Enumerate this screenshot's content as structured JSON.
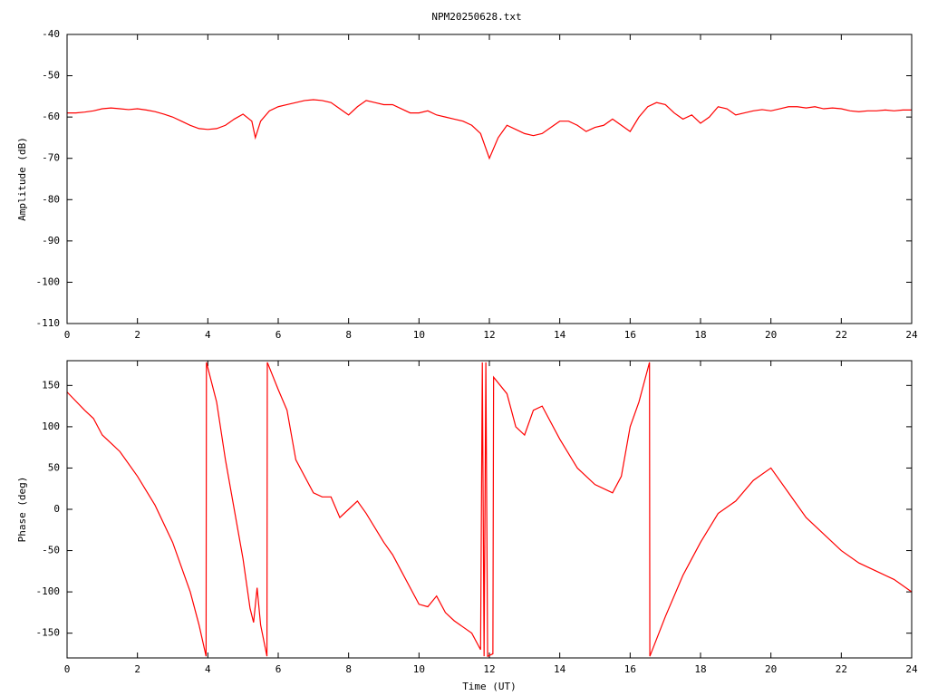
{
  "chart_data": [
    {
      "type": "line",
      "title": "NPM20250628.txt",
      "ylabel": "Amplitude (dB)",
      "xlim": [
        0,
        24
      ],
      "xticks": [
        0,
        2,
        4,
        6,
        8,
        10,
        12,
        14,
        16,
        18,
        20,
        22,
        24
      ],
      "ylim": [
        -110,
        -40
      ],
      "yticks": [
        -110,
        -100,
        -90,
        -80,
        -70,
        -60,
        -50,
        -40
      ],
      "series": [
        {
          "color": "#ff0000",
          "x": [
            0,
            0.25,
            0.5,
            0.75,
            1,
            1.25,
            1.5,
            1.75,
            2,
            2.25,
            2.5,
            2.75,
            3,
            3.25,
            3.5,
            3.75,
            4,
            4.25,
            4.5,
            4.75,
            5,
            5.25,
            5.35,
            5.5,
            5.75,
            6,
            6.25,
            6.5,
            6.75,
            7,
            7.25,
            7.5,
            7.75,
            8,
            8.25,
            8.5,
            8.75,
            9,
            9.25,
            9.5,
            9.75,
            10,
            10.25,
            10.5,
            10.75,
            11,
            11.25,
            11.5,
            11.75,
            12,
            12.25,
            12.5,
            12.75,
            13,
            13.25,
            13.5,
            13.75,
            14,
            14.25,
            14.5,
            14.75,
            15,
            15.25,
            15.5,
            15.75,
            16,
            16.25,
            16.5,
            16.75,
            17,
            17.25,
            17.5,
            17.75,
            18,
            18.25,
            18.5,
            18.75,
            19,
            19.25,
            19.5,
            19.75,
            20,
            20.25,
            20.5,
            20.75,
            21,
            21.25,
            21.5,
            21.75,
            22,
            22.25,
            22.5,
            22.75,
            23,
            23.25,
            23.5,
            23.75,
            24
          ],
          "values": [
            -59,
            -59,
            -58.8,
            -58.5,
            -58,
            -57.8,
            -58,
            -58.2,
            -58,
            -58.3,
            -58.7,
            -59.3,
            -60,
            -61,
            -62,
            -62.8,
            -63,
            -62.8,
            -62,
            -60.5,
            -59.3,
            -61,
            -65,
            -61,
            -58.5,
            -57.5,
            -57,
            -56.5,
            -56,
            -55.8,
            -56,
            -56.5,
            -58,
            -59.5,
            -57.5,
            -56,
            -56.5,
            -57,
            -57,
            -58,
            -59,
            -59,
            -58.5,
            -59.5,
            -60,
            -60.5,
            -61,
            -62,
            -64,
            -70,
            -65,
            -62,
            -63,
            -64,
            -64.5,
            -64,
            -62.5,
            -61,
            -61,
            -62,
            -63.5,
            -62.5,
            -62,
            -60.5,
            -62,
            -63.5,
            -60,
            -57.5,
            -56.5,
            -57,
            -59,
            -60.5,
            -59.5,
            -61.5,
            -60,
            -57.5,
            -58,
            -59.5,
            -59,
            -58.5,
            -58.2,
            -58.5,
            -58,
            -57.5,
            -57.5,
            -57.8,
            -57.5,
            -58,
            -57.8,
            -58,
            -58.5,
            -58.7,
            -58.5,
            -58.5,
            -58.3,
            -58.5,
            -58.3,
            -58.3
          ]
        }
      ]
    },
    {
      "type": "line",
      "ylabel": "Phase (deg)",
      "xlabel": "Time (UT)",
      "xlim": [
        0,
        24
      ],
      "xticks": [
        0,
        2,
        4,
        6,
        8,
        10,
        12,
        14,
        16,
        18,
        20,
        22,
        24
      ],
      "ylim": [
        -180,
        180
      ],
      "yticks": [
        -150,
        -100,
        -50,
        0,
        50,
        100,
        150
      ],
      "series": [
        {
          "color": "#ff0000",
          "x": [
            0,
            0.5,
            0.75,
            1,
            1.5,
            2,
            2.5,
            3,
            3.5,
            3.75,
            3.95,
            3.96,
            4.25,
            4.5,
            4.75,
            5,
            5.2,
            5.3,
            5.4,
            5.5,
            5.68,
            5.69,
            6,
            6.25,
            6.5,
            7,
            7.25,
            7.5,
            7.75,
            8,
            8.25,
            8.5,
            9,
            9.25,
            9.5,
            10,
            10.25,
            10.5,
            10.75,
            11,
            11.5,
            11.75,
            11.8,
            11.85,
            11.9,
            11.95,
            12.1,
            12.12,
            12.5,
            12.75,
            13,
            13.25,
            13.5,
            14,
            14.5,
            15,
            15.5,
            15.75,
            16,
            16.25,
            16.5,
            16.55,
            16.56,
            17,
            17.5,
            18,
            18.5,
            19,
            19.5,
            20,
            20.5,
            21,
            21.5,
            22,
            22.5,
            23,
            23.5,
            24
          ],
          "values": [
            142,
            120,
            110,
            90,
            70,
            40,
            5,
            -40,
            -100,
            -140,
            -178,
            178,
            130,
            60,
            0,
            -60,
            -120,
            -137,
            -95,
            -140,
            -178,
            178,
            145,
            120,
            60,
            20,
            15,
            15,
            -10,
            0,
            10,
            -5,
            -40,
            -55,
            -75,
            -115,
            -118,
            -105,
            -125,
            -135,
            -150,
            -170,
            178,
            -178,
            178,
            -178,
            -175,
            160,
            140,
            100,
            90,
            120,
            125,
            85,
            50,
            30,
            20,
            40,
            100,
            130,
            170,
            178,
            -178,
            -130,
            -80,
            -40,
            -5,
            10,
            35,
            50,
            20,
            -10,
            -30,
            -50,
            -65,
            -75,
            -85,
            -100
          ]
        }
      ]
    }
  ]
}
